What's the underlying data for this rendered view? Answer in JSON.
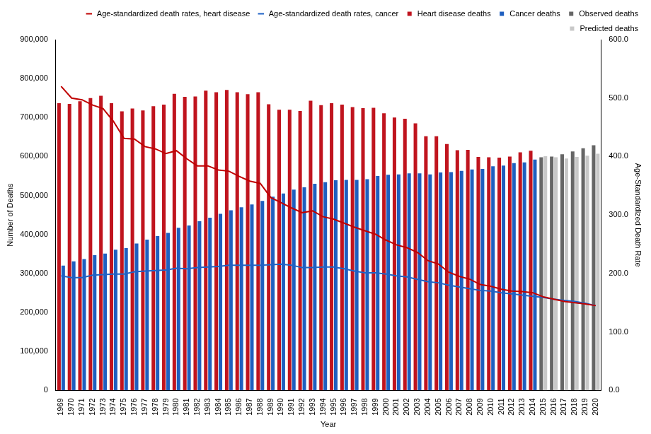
{
  "chart_data": {
    "type": "bar",
    "x_label": "Year",
    "y_label": "Number of Deaths",
    "y2_label": "Age-Standardized Death Rate",
    "categories": [
      "1969",
      "1970",
      "1971",
      "1972",
      "1973",
      "1974",
      "1975",
      "1976",
      "1977",
      "1978",
      "1979",
      "1980",
      "1981",
      "1982",
      "1983",
      "1984",
      "1985",
      "1986",
      "1987",
      "1988",
      "1989",
      "1990",
      "1991",
      "1992",
      "1993",
      "1994",
      "1995",
      "1996",
      "1997",
      "1998",
      "1999",
      "2000",
      "2001",
      "2002",
      "2003",
      "2004",
      "2005",
      "2006",
      "2007",
      "2008",
      "2009",
      "2010",
      "2011",
      "2012",
      "2013",
      "2014",
      "2015",
      "2016",
      "2017",
      "2018",
      "2019",
      "2020"
    ],
    "series": [
      {
        "name": "Heart disease deaths",
        "type": "bar",
        "color": "#c0141e",
        "values": [
          737000,
          735000,
          742000,
          750000,
          756000,
          737000,
          716000,
          723000,
          718000,
          729000,
          733000,
          761000,
          753000,
          754000,
          769000,
          765000,
          771000,
          765000,
          760000,
          765000,
          734000,
          720000,
          720000,
          717000,
          743000,
          732000,
          737000,
          733000,
          727000,
          724000,
          725000,
          711000,
          700000,
          697000,
          685000,
          652000,
          652000,
          632000,
          616000,
          617000,
          599000,
          598000,
          597000,
          600000,
          611000,
          615000,
          null,
          null,
          null,
          null,
          null,
          null
        ]
      },
      {
        "name": "Cancer deaths",
        "type": "bar",
        "color": "#1f5fbf",
        "values": [
          320000,
          331000,
          337000,
          347000,
          351000,
          361000,
          365000,
          377000,
          387000,
          396000,
          404000,
          417000,
          423000,
          434000,
          443000,
          453000,
          462000,
          470000,
          477000,
          486000,
          497000,
          505000,
          515000,
          521000,
          530000,
          534000,
          539000,
          540000,
          540000,
          542000,
          550000,
          553000,
          554000,
          557000,
          557000,
          554000,
          559000,
          560000,
          563000,
          567000,
          568000,
          575000,
          577000,
          583000,
          585000,
          592000,
          null,
          null,
          null,
          null,
          null,
          null
        ]
      },
      {
        "name": "Observed deaths",
        "type": "bar",
        "color": "#666666",
        "values": [
          null,
          null,
          null,
          null,
          null,
          null,
          null,
          null,
          null,
          null,
          null,
          null,
          null,
          null,
          null,
          null,
          null,
          null,
          null,
          null,
          null,
          null,
          null,
          null,
          null,
          null,
          null,
          null,
          null,
          null,
          null,
          null,
          null,
          null,
          null,
          null,
          null,
          null,
          null,
          null,
          null,
          null,
          null,
          null,
          null,
          null,
          598000,
          600000,
          606000,
          613000,
          621000,
          629000
        ]
      },
      {
        "name": "Predicted deaths",
        "type": "bar",
        "color": "#c8c8c8",
        "values": [
          null,
          null,
          null,
          null,
          null,
          null,
          null,
          null,
          null,
          null,
          null,
          null,
          null,
          null,
          null,
          null,
          null,
          null,
          null,
          null,
          null,
          null,
          null,
          null,
          null,
          null,
          null,
          null,
          null,
          null,
          null,
          null,
          null,
          null,
          null,
          null,
          null,
          null,
          null,
          null,
          null,
          null,
          null,
          null,
          null,
          null,
          601000,
          598000,
          595000,
          599000,
          602000,
          607000
        ]
      },
      {
        "name": "Age-standardized death rates, heart disease",
        "type": "line",
        "axis": "y2",
        "color": "#c00000",
        "line_style": "solid",
        "marker": "none",
        "values": [
          520,
          500,
          497,
          488,
          482,
          460,
          431,
          430,
          417,
          413,
          405,
          410,
          396,
          384,
          384,
          377,
          375,
          366,
          358,
          354,
          330,
          321,
          312,
          304,
          307,
          297,
          293,
          286,
          279,
          273,
          267,
          257,
          249,
          244,
          236,
          222,
          216,
          202,
          195,
          190,
          181,
          178,
          173,
          170,
          169,
          167,
          160,
          156,
          152,
          150,
          148,
          145
        ]
      },
      {
        "name": "Age-standardized death rates, cancer",
        "type": "line",
        "axis": "y2",
        "color": "#1f63c6",
        "line_style": "solid",
        "marker": "none",
        "values": [
          196,
          193,
          193,
          197,
          198,
          199,
          199,
          203,
          204,
          205,
          206,
          209,
          208,
          210,
          211,
          212,
          214,
          214,
          214,
          214,
          215,
          216,
          214,
          210,
          210,
          211,
          211,
          208,
          204,
          201,
          201,
          199,
          196,
          194,
          190,
          186,
          184,
          180,
          177,
          174,
          171,
          170,
          167,
          165,
          163,
          161,
          159,
          156,
          154,
          152,
          149,
          145
        ]
      }
    ],
    "ylim": [
      0,
      900000
    ],
    "yticks": [
      0,
      {
        "value": 100000,
        "label": "100,000"
      },
      {
        "value": 200000,
        "label": "200,000"
      },
      {
        "value": 300000,
        "label": "300,000"
      },
      {
        "value": 400000,
        "label": "400,000"
      },
      {
        "value": 500000,
        "label": "500,000"
      },
      {
        "value": 600000,
        "label": "600,000"
      },
      {
        "value": 700000,
        "label": "700,000"
      },
      {
        "value": 800000,
        "label": "800,000"
      },
      {
        "value": 900000,
        "label": "900,000"
      }
    ],
    "y2lim": [
      0,
      600
    ],
    "y2ticks": [
      {
        "value": 0,
        "label": "0.0"
      },
      {
        "value": 100,
        "label": "100.0"
      },
      {
        "value": 200,
        "label": "200.0"
      },
      {
        "value": 300,
        "label": "300.0"
      },
      {
        "value": 400,
        "label": "400.0"
      },
      {
        "value": 500,
        "label": "500.0"
      },
      {
        "value": 600,
        "label": "600.0"
      }
    ],
    "grid": false,
    "legend": "top-right"
  }
}
